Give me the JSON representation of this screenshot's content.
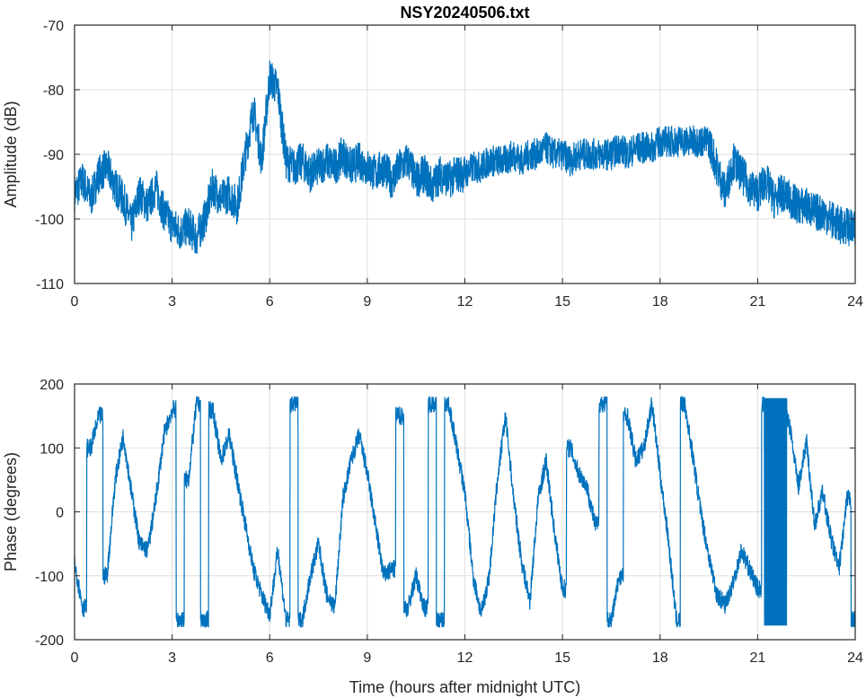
{
  "chart_data": [
    {
      "type": "line",
      "title": "NSY20240506.txt",
      "xlabel": "",
      "ylabel": "Amplitude (dB)",
      "xlim": [
        0,
        24
      ],
      "ylim": [
        -110,
        -70
      ],
      "xticks": [
        0,
        3,
        6,
        9,
        12,
        15,
        18,
        21,
        24
      ],
      "yticks": [
        -110,
        -100,
        -90,
        -80,
        -70
      ],
      "grid": true,
      "color": "#0072BD",
      "x": [
        0,
        0.25,
        0.5,
        0.75,
        1,
        1.25,
        1.5,
        1.75,
        2,
        2.25,
        2.5,
        2.75,
        3,
        3.25,
        3.5,
        3.75,
        4,
        4.25,
        4.5,
        4.75,
        5,
        5.25,
        5.5,
        5.75,
        6,
        6.25,
        6.5,
        6.75,
        7,
        7.25,
        7.5,
        7.75,
        8,
        8.25,
        8.5,
        8.75,
        9,
        9.25,
        9.5,
        9.75,
        10,
        10.25,
        10.5,
        10.75,
        11,
        11.25,
        11.5,
        11.75,
        12,
        12.25,
        12.5,
        12.75,
        13,
        13.25,
        13.5,
        13.75,
        14,
        14.25,
        14.5,
        14.75,
        15,
        15.25,
        15.5,
        15.75,
        16,
        16.25,
        16.5,
        16.75,
        17,
        17.25,
        17.5,
        17.75,
        18,
        18.25,
        18.5,
        18.75,
        19,
        19.25,
        19.5,
        19.75,
        20,
        20.25,
        20.5,
        20.75,
        21,
        21.25,
        21.5,
        21.75,
        22,
        22.25,
        22.5,
        22.75,
        23,
        23.25,
        23.5,
        23.75,
        24
      ],
      "y": [
        -96,
        -94,
        -97,
        -93,
        -92,
        -95,
        -97,
        -101,
        -96,
        -98,
        -95,
        -99,
        -101,
        -102,
        -101,
        -103,
        -100,
        -95,
        -97,
        -96,
        -98,
        -90,
        -83,
        -91,
        -78,
        -80,
        -91,
        -92,
        -91,
        -93,
        -92,
        -91,
        -92,
        -90,
        -92,
        -91,
        -92,
        -93,
        -92,
        -94,
        -92,
        -91,
        -94,
        -93,
        -95,
        -93,
        -94,
        -93,
        -93,
        -92,
        -92,
        -91,
        -91,
        -91,
        -90,
        -91,
        -90,
        -90,
        -89,
        -90,
        -90,
        -91,
        -90,
        -90,
        -90,
        -90,
        -90,
        -89,
        -90,
        -89,
        -89,
        -89,
        -88,
        -88,
        -88,
        -88,
        -88,
        -88,
        -88,
        -92,
        -96,
        -91,
        -93,
        -95,
        -96,
        -94,
        -97,
        -96,
        -97,
        -98,
        -98,
        -99,
        -99,
        -100,
        -101,
        -101,
        -102
      ]
    },
    {
      "type": "line",
      "title": "",
      "xlabel": "Time (hours after midnight UTC)",
      "ylabel": "Phase (degrees)",
      "xlim": [
        0,
        24
      ],
      "ylim": [
        -200,
        200
      ],
      "xticks": [
        0,
        3,
        6,
        9,
        12,
        15,
        18,
        21,
        24
      ],
      "yticks": [
        -200,
        -100,
        0,
        100,
        200
      ],
      "grid": true,
      "color": "#0072BD",
      "x": [
        0,
        0.25,
        0.5,
        0.75,
        1,
        1.25,
        1.5,
        1.75,
        2,
        2.25,
        2.5,
        2.75,
        3,
        3.25,
        3.5,
        3.75,
        4,
        4.25,
        4.5,
        4.75,
        5,
        5.25,
        5.5,
        5.75,
        6,
        6.25,
        6.5,
        6.75,
        7,
        7.25,
        7.5,
        7.75,
        8,
        8.25,
        8.5,
        8.75,
        9,
        9.25,
        9.5,
        9.75,
        10,
        10.25,
        10.5,
        10.75,
        11,
        11.25,
        11.5,
        11.75,
        12,
        12.25,
        12.5,
        12.75,
        13,
        13.25,
        13.5,
        13.75,
        14,
        14.25,
        14.5,
        14.75,
        15,
        15.25,
        15.5,
        15.75,
        16,
        16.25,
        16.5,
        16.75,
        17,
        17.25,
        17.5,
        17.75,
        18,
        18.25,
        18.5,
        18.75,
        19,
        19.25,
        19.5,
        19.75,
        20,
        20.25,
        20.5,
        20.75,
        21,
        21.25,
        21.5,
        21.75,
        22,
        22.25,
        22.5,
        22.75,
        23,
        23.25,
        23.5,
        23.75,
        24
      ],
      "y": [
        -80,
        -150,
        100,
        150,
        -100,
        50,
        120,
        30,
        -50,
        -60,
        20,
        120,
        160,
        -170,
        50,
        170,
        -170,
        160,
        80,
        120,
        50,
        -20,
        -90,
        -130,
        -160,
        -60,
        -170,
        170,
        -170,
        -100,
        -50,
        -130,
        -150,
        20,
        80,
        120,
        60,
        -20,
        -100,
        -90,
        150,
        -150,
        -100,
        -150,
        170,
        -170,
        170,
        100,
        30,
        -100,
        -160,
        -100,
        50,
        150,
        20,
        -80,
        -140,
        20,
        80,
        -30,
        -120,
        100,
        60,
        40,
        -20,
        170,
        -170,
        -100,
        150,
        80,
        100,
        170,
        60,
        -40,
        -170,
        170,
        90,
        0,
        -70,
        -130,
        -145,
        -110,
        -60,
        -90,
        -120,
        170,
        -170,
        170,
        130,
        40,
        110,
        -20,
        30,
        -40,
        -90,
        20,
        -170
      ]
    }
  ]
}
